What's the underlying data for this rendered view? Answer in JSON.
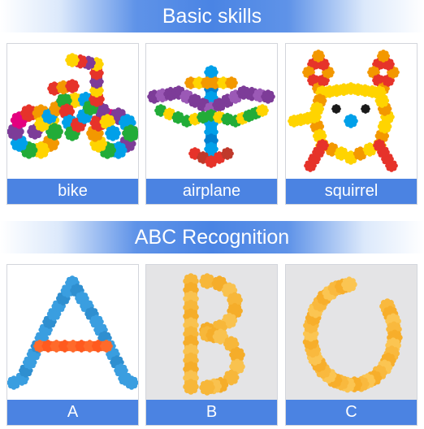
{
  "sections": [
    {
      "title": "Basic skills",
      "cards": [
        {
          "label": "bike",
          "icon": "bike-figure"
        },
        {
          "label": "airplane",
          "icon": "airplane-figure"
        },
        {
          "label": "squirrel",
          "icon": "squirrel-figure"
        }
      ]
    },
    {
      "title": "ABC Recognition",
      "cards": [
        {
          "label": "A",
          "icon": "letter-a-figure",
          "color": "#3a9ee0"
        },
        {
          "label": "B",
          "icon": "letter-b-figure",
          "color": "#f7b73a"
        },
        {
          "label": "C",
          "icon": "letter-c-figure",
          "color": "#f9b93e"
        }
      ]
    }
  ],
  "colors": {
    "banner": "#4a84e4",
    "label_bg": "#4b83e2",
    "label_text": "#ffffff"
  }
}
